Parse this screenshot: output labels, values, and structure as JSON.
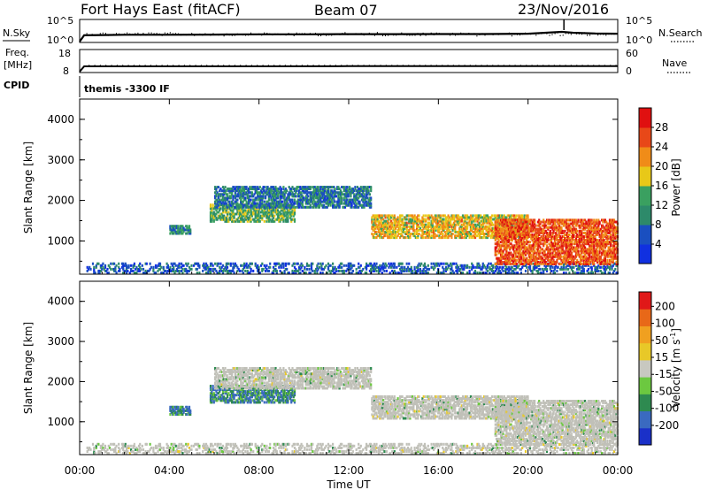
{
  "header": {
    "station": "Fort Hays East (fitACF)",
    "beam": "Beam 07",
    "date": "23/Nov/2016"
  },
  "noise_panel": {
    "left_label": "N.Sky",
    "right_label": "N.Search",
    "left_ticks": [
      "10^5",
      "10^0"
    ],
    "right_ticks": [
      "10^5",
      "10^0"
    ]
  },
  "freq_panel": {
    "left_label_1": "Freq.",
    "left_label_2": "[MHz]",
    "right_label": "Nave",
    "left_ticks": [
      "18",
      "8"
    ],
    "right_ticks": [
      "60",
      "0"
    ]
  },
  "cpid_panel": {
    "label": "CPID",
    "text": "themis -3300 IF"
  },
  "power_panel": {
    "ylabel": "Slant Range [km]",
    "yticks": [
      "4000",
      "3000",
      "2000",
      "1000"
    ],
    "colorbar_label": "Power [dB]",
    "colorbar_ticks": [
      "28",
      "24",
      "20",
      "16",
      "12",
      "8",
      "4"
    ],
    "colors": [
      "#1030e0",
      "#1a4fc0",
      "#2d8a6a",
      "#3aa060",
      "#e8c818",
      "#f08c18",
      "#e84818",
      "#e01010"
    ]
  },
  "velocity_panel": {
    "ylabel": "Slant Range [km]",
    "yticks": [
      "4000",
      "3000",
      "2000",
      "1000"
    ],
    "colorbar_label": "Velocity [m s^-1]",
    "colorbar_ticks": [
      "200",
      "100",
      "50",
      "15",
      "-15",
      "-50",
      "-100",
      "-200"
    ],
    "colors": [
      "#1a30c8",
      "#3a6ac0",
      "#2e8a50",
      "#6cc840",
      "#c8c8c0",
      "#e8c828",
      "#f0a020",
      "#e86818",
      "#e01818"
    ],
    "ground_color": "#c0c0b8"
  },
  "xaxis": {
    "label": "Time UT",
    "ticks": [
      "00:00",
      "04:00",
      "08:00",
      "12:00",
      "16:00",
      "20:00",
      "00:00"
    ]
  },
  "chart_data": {
    "type": "heatmap",
    "title": "Fort Hays East (fitACF) Beam 07 23/Nov/2016",
    "xlabel": "Time UT",
    "ylabel": "Slant Range [km]",
    "xlim_hours": [
      0,
      24
    ],
    "ylim_km": [
      180,
      4500
    ],
    "power_scale_db": [
      0,
      30
    ],
    "velocity_scale_ms": [
      -250,
      250
    ],
    "noise_series": {
      "name": "N.Sky",
      "hours": [
        0,
        0.2,
        2,
        4,
        6,
        8,
        10,
        12,
        14,
        16,
        18,
        20,
        21.5,
        22,
        23,
        24
      ],
      "values": [
        1,
        30,
        40,
        40,
        45,
        50,
        50,
        55,
        55,
        60,
        60,
        70,
        200,
        120,
        80,
        70
      ]
    },
    "frequency_series": {
      "name": "Freq.",
      "hours": [
        0,
        0.2,
        4,
        8,
        12,
        16,
        20,
        24
      ],
      "values_mhz": [
        8,
        10.5,
        10.5,
        10.5,
        10.6,
        10.6,
        10.6,
        10.6
      ]
    },
    "regions": [
      {
        "label": "near-range",
        "t_start": 0.3,
        "t_end": 24,
        "r_min": 180,
        "r_max": 450,
        "power_db": 6,
        "velocity": 0
      },
      {
        "label": "morning-patch",
        "t_start": 4.0,
        "t_end": 4.9,
        "r_min": 1150,
        "r_max": 1350,
        "power_db": 10,
        "velocity": 80
      },
      {
        "label": "morning-band",
        "t_start": 5.8,
        "t_end": 9.6,
        "r_min": 1450,
        "r_max": 1900,
        "power_db": 13,
        "velocity": 70
      },
      {
        "label": "upper-band",
        "t_start": 6.0,
        "t_end": 13.0,
        "r_min": 1800,
        "r_max": 2300,
        "power_db": 8,
        "velocity": 0
      },
      {
        "label": "afternoon-band",
        "t_start": 13.0,
        "t_end": 20.0,
        "r_min": 1050,
        "r_max": 1600,
        "power_db": 18,
        "velocity": 0
      },
      {
        "label": "evening-band",
        "t_start": 18.5,
        "t_end": 24,
        "r_min": 400,
        "r_max": 1500,
        "power_db": 24,
        "velocity": 0
      }
    ]
  }
}
